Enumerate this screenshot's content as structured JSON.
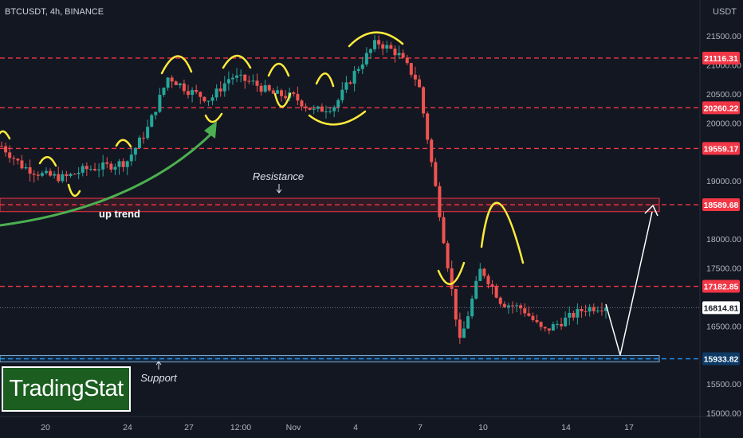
{
  "header": {
    "ticker": "BTCUSDT, 4h, BINANCE",
    "currency": "USDT"
  },
  "colors": {
    "background": "#131722",
    "up_candle": "#26a69a",
    "down_candle": "#ef5350",
    "resistance_line": "#f23645",
    "support_line": "#2196f3",
    "annotation": "#ffeb3b",
    "trend_arrow": "#4caf50",
    "projection": "#ffffff"
  },
  "axis": {
    "y_ticks": [
      "21500.00",
      "21000.00",
      "20500.00",
      "20000.00",
      "19000.00",
      "18000.00",
      "17500.00",
      "16500.00",
      "15500.00",
      "15000.00"
    ],
    "x_ticks": [
      "20",
      "24",
      "27",
      "12:00",
      "Nov",
      "4",
      "7",
      "10",
      "14",
      "17"
    ]
  },
  "price_levels": [
    {
      "id": "level-21116",
      "label": "21116.31",
      "type": "resistance"
    },
    {
      "id": "level-20260",
      "label": "20260.22",
      "type": "resistance"
    },
    {
      "id": "level-19559",
      "label": "19559.17",
      "type": "resistance"
    },
    {
      "id": "level-18589",
      "label": "18589.68",
      "type": "resistance"
    },
    {
      "id": "level-17182",
      "label": "17182.85",
      "type": "resistance"
    },
    {
      "id": "level-16814",
      "label": "16814.81",
      "type": "current"
    },
    {
      "id": "level-15933",
      "label": "15933.82",
      "type": "support"
    }
  ],
  "annotations": {
    "resistance": "Resistance",
    "support": "Support",
    "up_trend": "up trend"
  },
  "logo": {
    "text": "TradingStat"
  },
  "chart_data": {
    "type": "candlestick",
    "symbol": "BTCUSDT",
    "timeframe": "4h",
    "exchange": "BINANCE",
    "y_range": [
      14950,
      22000
    ],
    "close_path": [
      {
        "x": "Oct 18",
        "y": 19600
      },
      {
        "x": "Oct 19",
        "y": 19250
      },
      {
        "x": "Oct 20",
        "y": 19100
      },
      {
        "x": "Oct 21",
        "y": 19050
      },
      {
        "x": "Oct 22",
        "y": 19200
      },
      {
        "x": "Oct 23",
        "y": 19250
      },
      {
        "x": "Oct 24",
        "y": 19330
      },
      {
        "x": "Oct 25",
        "y": 19900
      },
      {
        "x": "Oct 26",
        "y": 20800
      },
      {
        "x": "Oct 27",
        "y": 20550
      },
      {
        "x": "Oct 28",
        "y": 20400
      },
      {
        "x": "Oct 29",
        "y": 20800
      },
      {
        "x": "Oct 30",
        "y": 20700
      },
      {
        "x": "Oct 31",
        "y": 20500
      },
      {
        "x": "Nov 1",
        "y": 20450
      },
      {
        "x": "Nov 2",
        "y": 20200
      },
      {
        "x": "Nov 3",
        "y": 20300
      },
      {
        "x": "Nov 4",
        "y": 20900
      },
      {
        "x": "Nov 5",
        "y": 21400
      },
      {
        "x": "Nov 6",
        "y": 21200
      },
      {
        "x": "Nov 7",
        "y": 20700
      },
      {
        "x": "Nov 8",
        "y": 18500
      },
      {
        "x": "Nov 9",
        "y": 16200
      },
      {
        "x": "Nov 10",
        "y": 17500
      },
      {
        "x": "Nov 11",
        "y": 16900
      },
      {
        "x": "Nov 12",
        "y": 16800
      },
      {
        "x": "Nov 13",
        "y": 16400
      },
      {
        "x": "Nov 14",
        "y": 16600
      },
      {
        "x": "Nov 15",
        "y": 16800
      },
      {
        "x": "Nov 16",
        "y": 16850
      }
    ]
  }
}
